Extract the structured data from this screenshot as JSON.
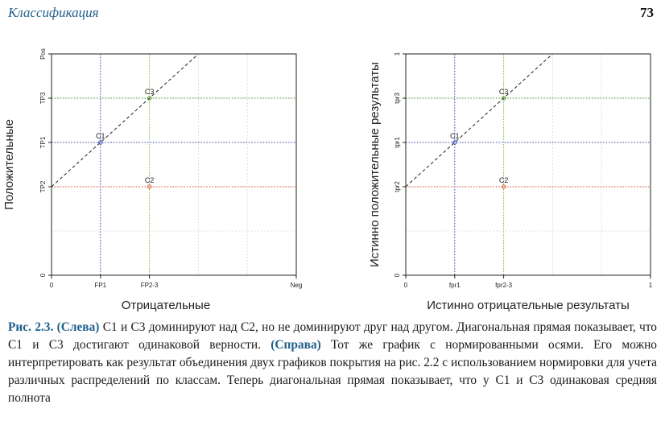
{
  "header": {
    "title": "Классификация",
    "page_number": "73"
  },
  "chart_data": [
    {
      "type": "line",
      "xlabel": "Отрицательные",
      "ylabel": "Положительные",
      "xlim": [
        0,
        10
      ],
      "ylim": [
        0,
        10
      ],
      "x_ticks": [
        {
          "value": 0,
          "label": "0"
        },
        {
          "value": 2,
          "label": "FP1"
        },
        {
          "value": 4,
          "label": "FP2-3"
        },
        {
          "value": 10,
          "label": "Neg"
        }
      ],
      "y_ticks": [
        {
          "value": 0,
          "label": "0"
        },
        {
          "value": 4,
          "label": "TP2"
        },
        {
          "value": 6,
          "label": "TP1"
        },
        {
          "value": 8,
          "label": "TP3"
        },
        {
          "value": 10,
          "label": "Pos"
        }
      ],
      "grid": true,
      "points": [
        {
          "name": "C1",
          "x": 2,
          "y": 6,
          "color": "#3d4fb8"
        },
        {
          "name": "C3",
          "x": 4,
          "y": 8,
          "color": "#4a9a2e"
        },
        {
          "name": "C2",
          "x": 4,
          "y": 4,
          "color": "#e0522e"
        }
      ],
      "guides": [
        {
          "orient": "h",
          "value": 6,
          "color": "#3d4fb8"
        },
        {
          "orient": "h",
          "value": 8,
          "color": "#4a9a2e"
        },
        {
          "orient": "h",
          "value": 4,
          "color": "#e0522e"
        },
        {
          "orient": "v",
          "value": 2,
          "color": "#3d4fb8"
        },
        {
          "orient": "v",
          "value": 4,
          "color": "#8fbf3a"
        }
      ],
      "diagonal": {
        "x": [
          0,
          6
        ],
        "y": [
          4,
          10
        ]
      }
    },
    {
      "type": "line",
      "xlabel": "Истинно отрицательные результаты",
      "ylabel": "Истинно положительные результаты",
      "xlim": [
        0,
        1
      ],
      "ylim": [
        0,
        1
      ],
      "x_ticks": [
        {
          "value": 0,
          "label": "0"
        },
        {
          "value": 0.2,
          "label": "fpr1"
        },
        {
          "value": 0.4,
          "label": "fpr2-3"
        },
        {
          "value": 1,
          "label": "1"
        }
      ],
      "y_ticks": [
        {
          "value": 0,
          "label": "0"
        },
        {
          "value": 0.4,
          "label": "tpr2"
        },
        {
          "value": 0.6,
          "label": "tpr1"
        },
        {
          "value": 0.8,
          "label": "tpr3"
        },
        {
          "value": 1,
          "label": "1"
        }
      ],
      "grid": true,
      "points": [
        {
          "name": "C1",
          "x": 0.2,
          "y": 0.6,
          "color": "#3d4fb8"
        },
        {
          "name": "C3",
          "x": 0.4,
          "y": 0.8,
          "color": "#4a9a2e"
        },
        {
          "name": "C2",
          "x": 0.4,
          "y": 0.4,
          "color": "#e0522e"
        }
      ],
      "guides": [
        {
          "orient": "h",
          "value": 0.6,
          "color": "#3d4fb8"
        },
        {
          "orient": "h",
          "value": 0.8,
          "color": "#4a9a2e"
        },
        {
          "orient": "h",
          "value": 0.4,
          "color": "#e0522e"
        },
        {
          "orient": "v",
          "value": 0.2,
          "color": "#3d4fb8"
        },
        {
          "orient": "v",
          "value": 0.4,
          "color": "#8fbf3a"
        }
      ],
      "diagonal": {
        "x": [
          0,
          0.6
        ],
        "y": [
          0.4,
          1
        ]
      }
    }
  ],
  "caption": {
    "label": "Рис. 2.3.",
    "left_tag": "(Слева)",
    "text1": " С1 и С3 доминируют над С2, но не доминируют друг над другом. Диагональная прямая показывает, что С1 и С3 достигают одинаковой верности. ",
    "right_tag": "(Справа)",
    "text2": " Тот же график с нормированными осями. Его можно интерпретировать как результат объединения двух графиков покрытия на рис. 2.2 с использованием нормировки для учета различных распределений по классам. Теперь диагональная прямая показывает, что у С1 и С3 одинаковая средняя полнота"
  }
}
